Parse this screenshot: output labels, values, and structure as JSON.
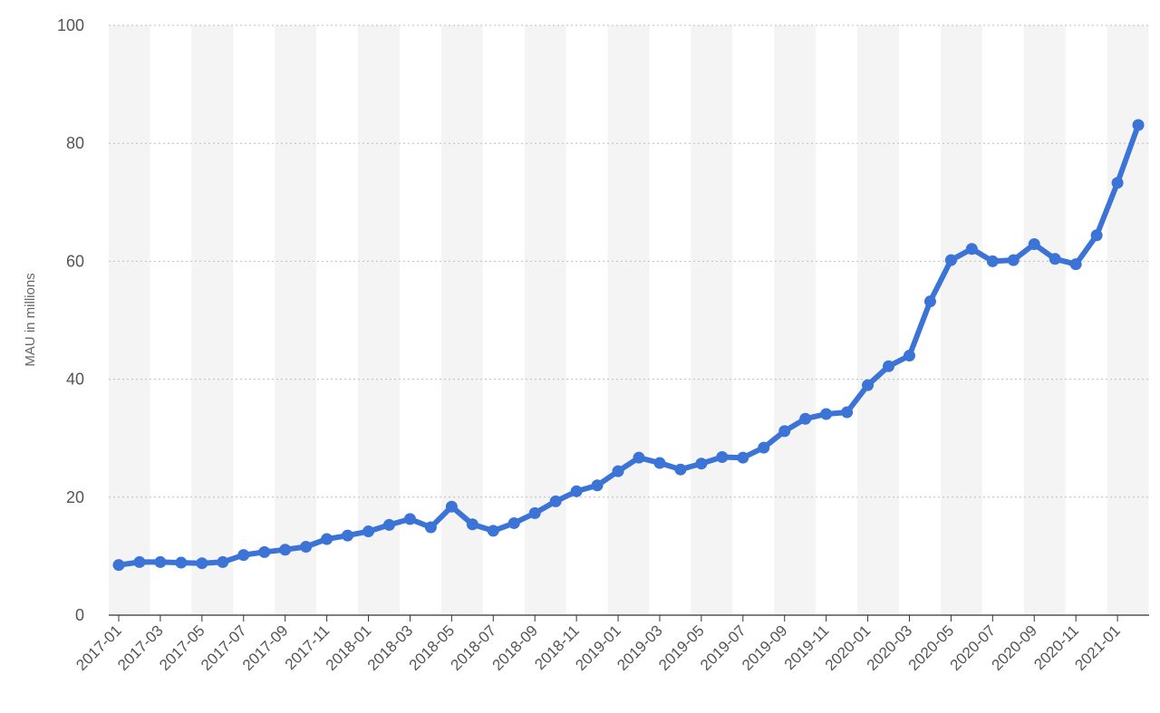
{
  "chart_data": {
    "type": "line",
    "title": "",
    "xlabel": "",
    "ylabel": "MAU in millions",
    "ylim": [
      0,
      100
    ],
    "yticks": [
      0,
      20,
      40,
      60,
      80,
      100
    ],
    "grid": true,
    "x": [
      "2017-01",
      "2017-02",
      "2017-03",
      "2017-04",
      "2017-05",
      "2017-06",
      "2017-07",
      "2017-08",
      "2017-09",
      "2017-10",
      "2017-11",
      "2017-12",
      "2018-01",
      "2018-02",
      "2018-03",
      "2018-04",
      "2018-05",
      "2018-06",
      "2018-07",
      "2018-08",
      "2018-09",
      "2018-10",
      "2018-11",
      "2018-12",
      "2019-01",
      "2019-02",
      "2019-03",
      "2019-04",
      "2019-05",
      "2019-06",
      "2019-07",
      "2019-08",
      "2019-09",
      "2019-10",
      "2019-11",
      "2019-12",
      "2020-01",
      "2020-02",
      "2020-03",
      "2020-04",
      "2020-05",
      "2020-06",
      "2020-07",
      "2020-08",
      "2020-09",
      "2020-10",
      "2020-11",
      "2020-12",
      "2021-01",
      "2021-02"
    ],
    "xtick_labels": [
      "2017-01",
      "2017-03",
      "2017-05",
      "2017-07",
      "2017-09",
      "2017-11",
      "2018-01",
      "2018-03",
      "2018-05",
      "2018-07",
      "2018-09",
      "2018-11",
      "2019-01",
      "2019-03",
      "2019-05",
      "2019-07",
      "2019-09",
      "2019-11",
      "2020-01",
      "2020-03",
      "2020-05",
      "2020-07",
      "2020-09",
      "2020-11",
      "2021-01"
    ],
    "series": [
      {
        "values": [
          8.5,
          9.0,
          9.0,
          8.9,
          8.8,
          9.0,
          10.2,
          10.7,
          11.1,
          11.6,
          12.9,
          13.5,
          14.2,
          15.3,
          16.3,
          14.9,
          18.4,
          15.4,
          14.3,
          15.6,
          17.3,
          19.3,
          21.0,
          22.0,
          24.4,
          26.7,
          25.8,
          24.7,
          25.7,
          26.8,
          26.7,
          28.4,
          31.2,
          33.3,
          34.1,
          34.4,
          39.0,
          42.2,
          44.0,
          53.2,
          60.2,
          62.1,
          60.0,
          60.2,
          62.9,
          60.4,
          59.5,
          64.4,
          73.3,
          83.1
        ],
        "color": "#3b73d6"
      }
    ]
  }
}
